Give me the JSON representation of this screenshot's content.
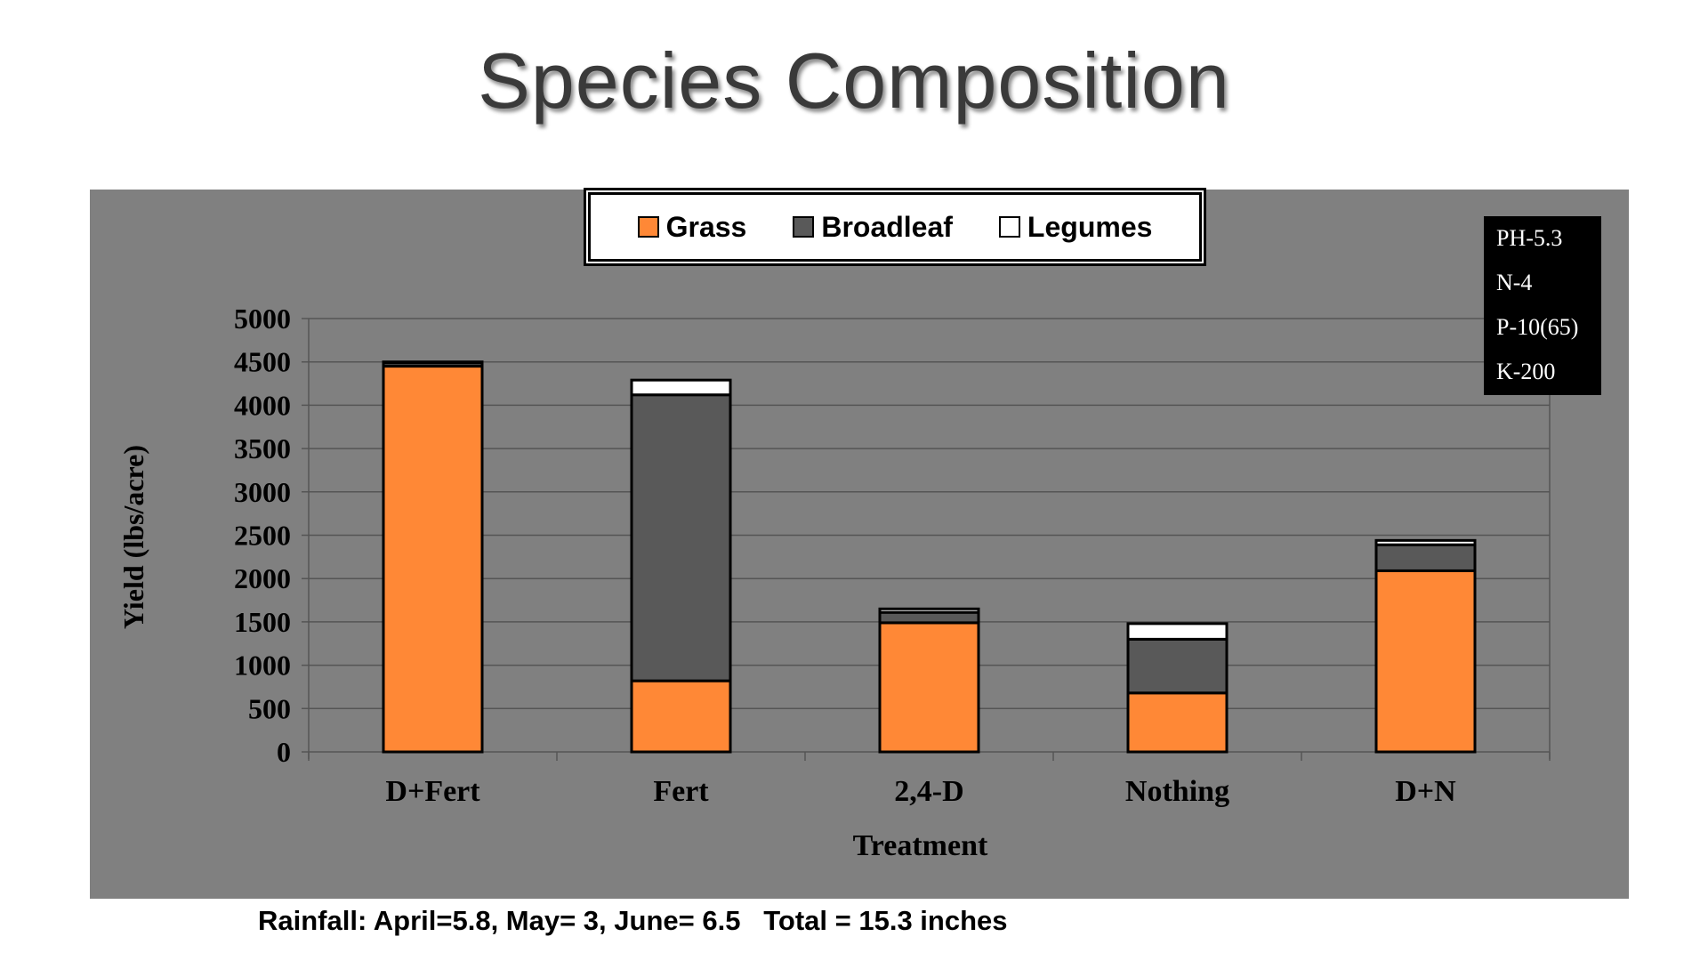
{
  "title": "Species Composition",
  "footer": "Rainfall: April=5.8, May= 3, June= 6.5   Total = 15.3 inches",
  "soil_box": [
    "PH-5.3",
    "N-4",
    "P-10(65)",
    "K-200"
  ],
  "chart_data": {
    "type": "bar",
    "stacked": true,
    "categories": [
      "D+Fert",
      "Fert",
      "2,4-D",
      "Nothing",
      "D+N"
    ],
    "series": [
      {
        "name": "Grass",
        "color": "#ff8836",
        "values": [
          4450,
          820,
          1490,
          680,
          2090
        ]
      },
      {
        "name": "Broadleaf",
        "color": "#595959",
        "values": [
          40,
          3300,
          120,
          620,
          300
        ]
      },
      {
        "name": "Legumes",
        "color": "#ffffff",
        "values": [
          10,
          170,
          40,
          180,
          50
        ]
      }
    ],
    "xlabel": "Treatment",
    "ylabel": "Yield (lbs/acre)",
    "ylim": [
      0,
      5000
    ],
    "yticks": [
      0,
      500,
      1000,
      1500,
      2000,
      2500,
      3000,
      3500,
      4000,
      4500,
      5000
    ],
    "grid": true,
    "legend_position": "top-center"
  }
}
